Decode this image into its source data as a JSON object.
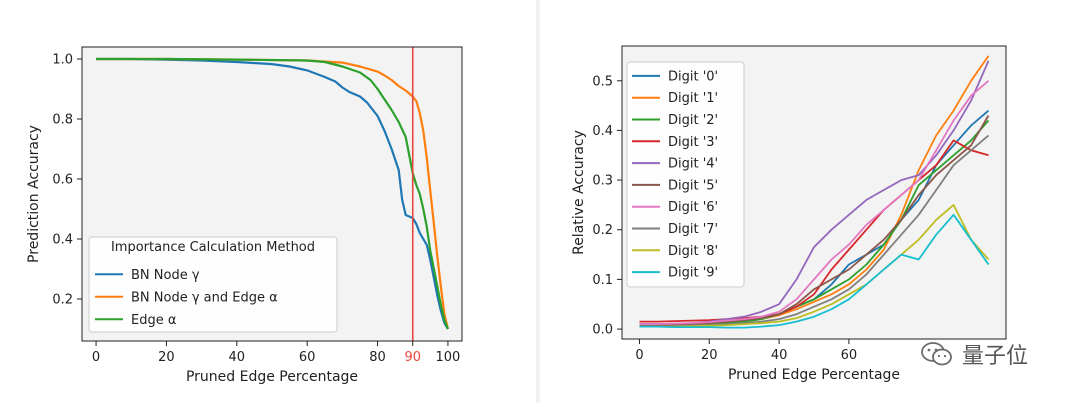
{
  "watermark": {
    "text": "量子位",
    "icon": "wechat-icon"
  },
  "chart_data": [
    {
      "type": "line",
      "xlabel": "Pruned Edge Percentage",
      "ylabel": "Prediction Accuracy",
      "xlim": [
        -4,
        104
      ],
      "ylim": [
        0.06,
        1.04
      ],
      "xticks": [
        0,
        20,
        40,
        60,
        80,
        100
      ],
      "xtick_labels": [
        "0",
        "20",
        "40",
        "60",
        "80",
        "100"
      ],
      "yticks": [
        0.2,
        0.4,
        0.6,
        0.8,
        1.0
      ],
      "ytick_labels": [
        "0.2",
        "0.4",
        "0.6",
        "0.8",
        "1.0"
      ],
      "grid": false,
      "background": "#f3f3f3",
      "legend": {
        "title": "Importance Calculation Method",
        "position": "lower-left"
      },
      "vline": {
        "x": 90,
        "color": "#e8473d",
        "label": "90"
      },
      "series": [
        {
          "name": "BN Node γ",
          "color": "#1f77b4",
          "x": [
            0,
            10,
            20,
            30,
            40,
            50,
            55,
            60,
            65,
            68,
            70,
            72,
            75,
            77,
            80,
            82,
            84,
            86,
            87,
            88,
            89,
            90,
            91,
            92,
            93,
            94,
            95,
            96,
            97,
            98,
            99,
            100
          ],
          "y": [
            1.0,
            1.0,
            0.998,
            0.995,
            0.99,
            0.983,
            0.975,
            0.962,
            0.94,
            0.925,
            0.905,
            0.89,
            0.875,
            0.855,
            0.81,
            0.76,
            0.7,
            0.63,
            0.53,
            0.48,
            0.475,
            0.47,
            0.45,
            0.42,
            0.4,
            0.38,
            0.33,
            0.27,
            0.21,
            0.16,
            0.12,
            0.1
          ]
        },
        {
          "name": "BN Node γ and Edge α",
          "color": "#ff7f0e",
          "x": [
            0,
            20,
            40,
            60,
            70,
            75,
            80,
            82,
            84,
            86,
            88,
            89,
            90,
            91,
            92,
            93,
            94,
            95,
            96,
            97,
            98,
            99,
            100
          ],
          "y": [
            1.0,
            1.0,
            0.998,
            0.995,
            0.988,
            0.975,
            0.958,
            0.945,
            0.93,
            0.91,
            0.895,
            0.885,
            0.875,
            0.86,
            0.82,
            0.76,
            0.67,
            0.56,
            0.45,
            0.34,
            0.24,
            0.15,
            0.1
          ]
        },
        {
          "name": "Edge α",
          "color": "#2ca02c",
          "x": [
            0,
            20,
            40,
            60,
            65,
            70,
            75,
            78,
            80,
            82,
            84,
            86,
            88,
            89,
            90,
            91,
            92,
            93,
            94,
            95,
            96,
            97,
            98,
            99,
            100
          ],
          "y": [
            1.0,
            1.0,
            0.998,
            0.995,
            0.99,
            0.975,
            0.955,
            0.93,
            0.9,
            0.865,
            0.83,
            0.79,
            0.74,
            0.68,
            0.62,
            0.58,
            0.55,
            0.5,
            0.44,
            0.36,
            0.3,
            0.24,
            0.18,
            0.13,
            0.1
          ]
        }
      ]
    },
    {
      "type": "line",
      "xlabel": "Pruned Edge Percentage",
      "ylabel": "Relative Accuracy",
      "xlim": [
        -5,
        105
      ],
      "ylim": [
        -0.02,
        0.57
      ],
      "xticks": [
        0,
        20,
        40,
        60
      ],
      "xtick_labels": [
        "0",
        "20",
        "40",
        "60"
      ],
      "yticks": [
        0.0,
        0.1,
        0.2,
        0.3,
        0.4,
        0.5
      ],
      "ytick_labels": [
        "0.0",
        "0.1",
        "0.2",
        "0.3",
        "0.4",
        "0.5"
      ],
      "grid": false,
      "background": "#f3f3f3",
      "legend": {
        "position": "upper-left"
      },
      "x": [
        0,
        5,
        10,
        15,
        20,
        25,
        30,
        35,
        40,
        45,
        50,
        55,
        60,
        65,
        70,
        75,
        80,
        85,
        90,
        95,
        100
      ],
      "series": [
        {
          "name": "Digit '0'",
          "color": "#1f77b4",
          "values": [
            0.01,
            0.01,
            0.01,
            0.012,
            0.012,
            0.015,
            0.018,
            0.022,
            0.03,
            0.045,
            0.06,
            0.09,
            0.13,
            0.15,
            0.17,
            0.22,
            0.26,
            0.33,
            0.37,
            0.41,
            0.44
          ]
        },
        {
          "name": "Digit '1'",
          "color": "#ff7f0e",
          "values": [
            0.005,
            0.005,
            0.007,
            0.008,
            0.01,
            0.012,
            0.015,
            0.02,
            0.028,
            0.04,
            0.055,
            0.07,
            0.09,
            0.12,
            0.16,
            0.23,
            0.32,
            0.39,
            0.44,
            0.5,
            0.55
          ]
        },
        {
          "name": "Digit '2'",
          "color": "#2ca02c",
          "values": [
            0.005,
            0.006,
            0.007,
            0.009,
            0.01,
            0.012,
            0.015,
            0.02,
            0.03,
            0.045,
            0.06,
            0.08,
            0.1,
            0.13,
            0.17,
            0.22,
            0.29,
            0.32,
            0.35,
            0.38,
            0.42
          ]
        },
        {
          "name": "Digit '3'",
          "color": "#d62728",
          "values": [
            0.015,
            0.015,
            0.016,
            0.017,
            0.018,
            0.02,
            0.022,
            0.025,
            0.03,
            0.045,
            0.07,
            0.12,
            0.16,
            0.2,
            0.24,
            0.27,
            0.3,
            0.33,
            0.38,
            0.36,
            0.35
          ]
        },
        {
          "name": "Digit '4'",
          "color": "#9467bd",
          "values": [
            0.01,
            0.01,
            0.011,
            0.012,
            0.015,
            0.02,
            0.025,
            0.035,
            0.05,
            0.1,
            0.165,
            0.2,
            0.23,
            0.26,
            0.28,
            0.3,
            0.31,
            0.35,
            0.4,
            0.46,
            0.54
          ]
        },
        {
          "name": "Digit '5'",
          "color": "#8c564b",
          "values": [
            0.008,
            0.008,
            0.009,
            0.01,
            0.012,
            0.015,
            0.018,
            0.022,
            0.03,
            0.05,
            0.08,
            0.1,
            0.12,
            0.15,
            0.18,
            0.22,
            0.27,
            0.31,
            0.34,
            0.37,
            0.43
          ]
        },
        {
          "name": "Digit '6'",
          "color": "#e377c2",
          "values": [
            0.01,
            0.01,
            0.011,
            0.012,
            0.014,
            0.017,
            0.02,
            0.025,
            0.035,
            0.06,
            0.1,
            0.14,
            0.17,
            0.21,
            0.24,
            0.27,
            0.3,
            0.36,
            0.42,
            0.47,
            0.5
          ]
        },
        {
          "name": "Digit '7'",
          "color": "#7f7f7f",
          "values": [
            0.005,
            0.005,
            0.006,
            0.007,
            0.008,
            0.01,
            0.012,
            0.015,
            0.02,
            0.03,
            0.045,
            0.06,
            0.08,
            0.11,
            0.15,
            0.19,
            0.23,
            0.28,
            0.33,
            0.36,
            0.39
          ]
        },
        {
          "name": "Digit '8'",
          "color": "#bcbd22",
          "values": [
            0.005,
            0.005,
            0.005,
            0.006,
            0.007,
            0.008,
            0.01,
            0.012,
            0.015,
            0.022,
            0.035,
            0.05,
            0.07,
            0.09,
            0.12,
            0.15,
            0.18,
            0.22,
            0.25,
            0.18,
            0.14
          ]
        },
        {
          "name": "Digit '9'",
          "color": "#17becf",
          "values": [
            0.005,
            0.005,
            0.004,
            0.004,
            0.004,
            0.003,
            0.003,
            0.005,
            0.008,
            0.015,
            0.025,
            0.04,
            0.06,
            0.09,
            0.12,
            0.15,
            0.14,
            0.19,
            0.23,
            0.18,
            0.13
          ]
        }
      ]
    }
  ]
}
